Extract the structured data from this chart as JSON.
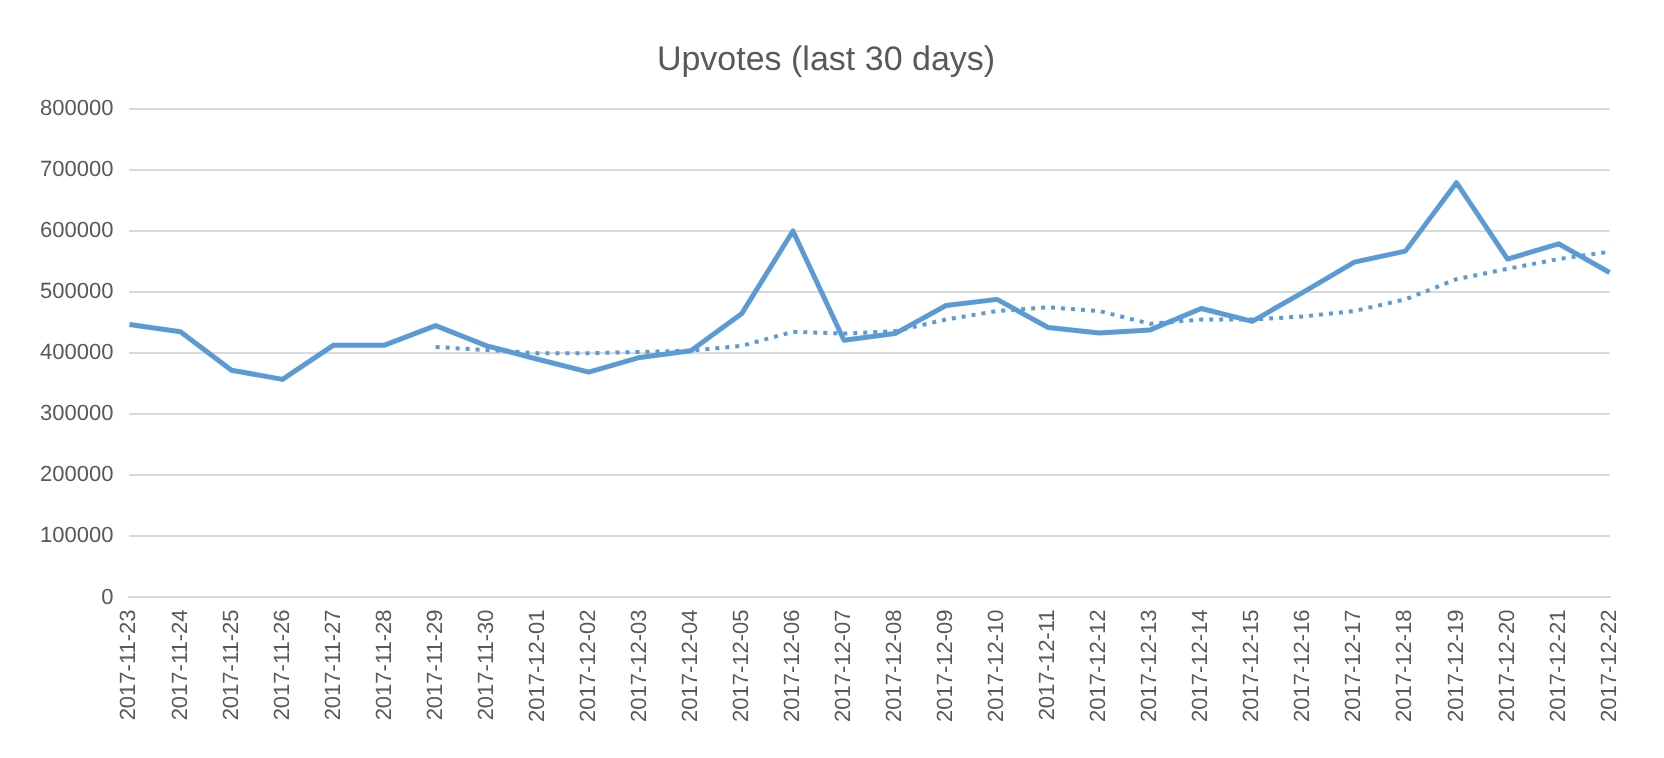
{
  "chart_data": {
    "type": "line",
    "title": "Upvotes (last 30 days)",
    "categories": [
      "2017-11-23",
      "2017-11-24",
      "2017-11-25",
      "2017-11-26",
      "2017-11-27",
      "2017-11-28",
      "2017-11-29",
      "2017-11-30",
      "2017-12-01",
      "2017-12-02",
      "2017-12-03",
      "2017-12-04",
      "2017-12-05",
      "2017-12-06",
      "2017-12-07",
      "2017-12-08",
      "2017-12-09",
      "2017-12-10",
      "2017-12-11",
      "2017-12-12",
      "2017-12-13",
      "2017-12-14",
      "2017-12-15",
      "2017-12-16",
      "2017-12-17",
      "2017-12-18",
      "2017-12-19",
      "2017-12-20",
      "2017-12-21",
      "2017-12-22"
    ],
    "series": [
      {
        "color": "#5b9bd5",
        "line_style": "solid",
        "values": [
          447000,
          435000,
          372000,
          357000,
          413000,
          413000,
          445000,
          412000,
          390000,
          369000,
          393000,
          404000,
          465000,
          600000,
          421000,
          432000,
          478000,
          488000,
          442000,
          433000,
          438000,
          473000,
          452000,
          500000,
          549000,
          567000,
          679000,
          554000,
          579000,
          532000
        ]
      },
      {
        "color": "#5b9bd5",
        "line_style": "dotted",
        "values": [
          null,
          null,
          null,
          null,
          null,
          null,
          410000,
          405000,
          400000,
          400000,
          402000,
          404000,
          412000,
          435000,
          432000,
          436000,
          455000,
          469000,
          475000,
          469000,
          448000,
          455000,
          455000,
          460000,
          469000,
          488000,
          521000,
          538000,
          554000,
          566000
        ]
      }
    ],
    "ylim": [
      0,
      800000
    ],
    "yticks": [
      0,
      100000,
      200000,
      300000,
      400000,
      500000,
      600000,
      700000,
      800000
    ],
    "grid": "y",
    "legend": false,
    "marker": "none"
  }
}
